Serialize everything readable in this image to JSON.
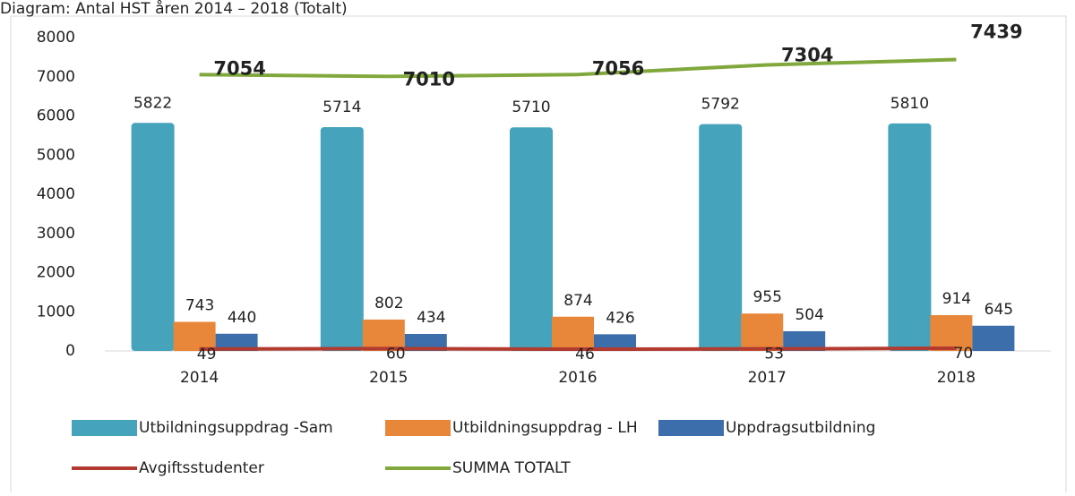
{
  "chart_data": {
    "type": "bar-line",
    "title": "Diagram: Antal HST åren 2014 – 2018 (Totalt)",
    "categories": [
      "2014",
      "2015",
      "2016",
      "2017",
      "2018"
    ],
    "ylim": [
      0,
      8000
    ],
    "yticks": [
      0,
      1000,
      2000,
      3000,
      4000,
      5000,
      6000,
      7000,
      8000
    ],
    "series": [
      {
        "name": "Utbildningsuppdrag -Sam",
        "type": "bar",
        "color": "#45a3bc",
        "values": [
          5822,
          5714,
          5710,
          5792,
          5810
        ]
      },
      {
        "name": "Utbildningsuppdrag - LH",
        "type": "bar",
        "color": "#e8863a",
        "values": [
          743,
          802,
          874,
          955,
          914
        ]
      },
      {
        "name": "Uppdragsutbildning",
        "type": "bar",
        "color": "#3d6eac",
        "values": [
          440,
          434,
          426,
          504,
          645
        ]
      },
      {
        "name": "Avgiftsstudenter",
        "type": "line",
        "color": "#b23a2f",
        "values": [
          49,
          60,
          46,
          53,
          70
        ]
      },
      {
        "name": "SUMMA TOTALT",
        "type": "line",
        "color": "#80a83c",
        "values": [
          7054,
          7010,
          7056,
          7304,
          7439
        ]
      }
    ]
  }
}
